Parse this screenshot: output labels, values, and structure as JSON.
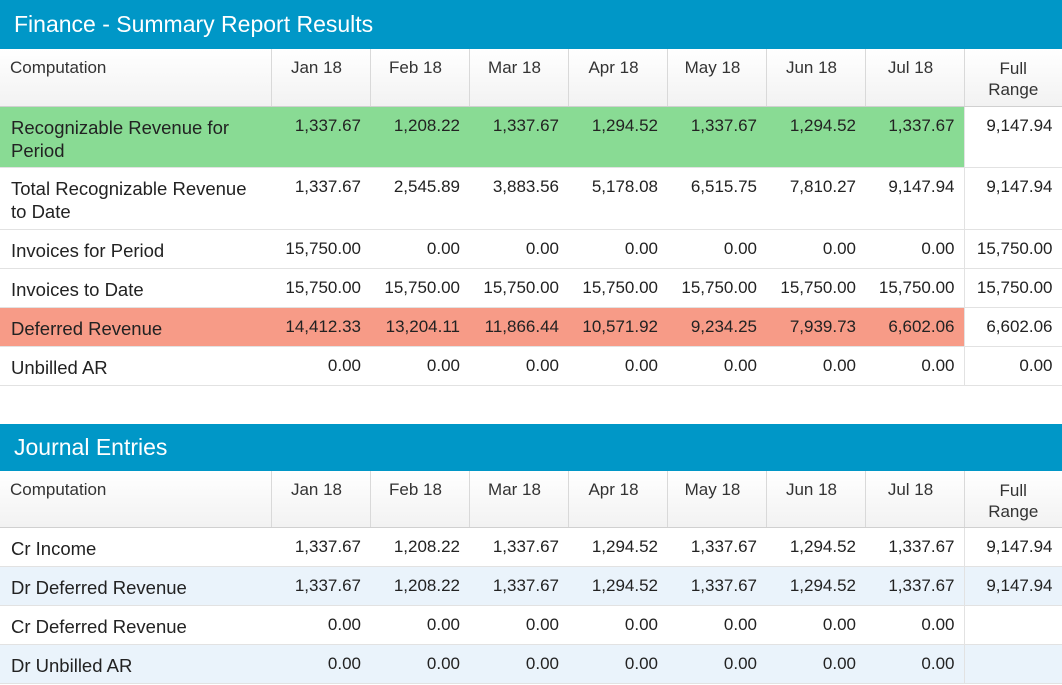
{
  "summary": {
    "title": "Finance - Summary Report Results",
    "columns": [
      "Computation",
      "Jan 18",
      "Feb 18",
      "Mar 18",
      "Apr 18",
      "May 18",
      "Jun 18",
      "Jul 18",
      "Full Range"
    ],
    "rows": [
      {
        "label": "Recognizable Revenue for Period",
        "highlight": "green",
        "values": [
          "1,337.67",
          "1,208.22",
          "1,337.67",
          "1,294.52",
          "1,337.67",
          "1,294.52",
          "1,337.67"
        ],
        "full": "9,147.94"
      },
      {
        "label": "Total Recognizable Revenue to Date",
        "values": [
          "1,337.67",
          "2,545.89",
          "3,883.56",
          "5,178.08",
          "6,515.75",
          "7,810.27",
          "9,147.94"
        ],
        "full": "9,147.94"
      },
      {
        "label": "Invoices for Period",
        "values": [
          "15,750.00",
          "0.00",
          "0.00",
          "0.00",
          "0.00",
          "0.00",
          "0.00"
        ],
        "full": "15,750.00"
      },
      {
        "label": "Invoices to Date",
        "values": [
          "15,750.00",
          "15,750.00",
          "15,750.00",
          "15,750.00",
          "15,750.00",
          "15,750.00",
          "15,750.00"
        ],
        "full": "15,750.00"
      },
      {
        "label": "Deferred Revenue",
        "highlight": "red",
        "values": [
          "14,412.33",
          "13,204.11",
          "11,866.44",
          "10,571.92",
          "9,234.25",
          "7,939.73",
          "6,602.06"
        ],
        "full": "6,602.06"
      },
      {
        "label": "Unbilled AR",
        "values": [
          "0.00",
          "0.00",
          "0.00",
          "0.00",
          "0.00",
          "0.00",
          "0.00"
        ],
        "full": "0.00"
      }
    ]
  },
  "journal": {
    "title": "Journal Entries",
    "columns": [
      "Computation",
      "Jan 18",
      "Feb 18",
      "Mar 18",
      "Apr 18",
      "May 18",
      "Jun 18",
      "Jul 18",
      "Full Range"
    ],
    "rows": [
      {
        "label": "Cr Income",
        "values": [
          "1,337.67",
          "1,208.22",
          "1,337.67",
          "1,294.52",
          "1,337.67",
          "1,294.52",
          "1,337.67"
        ],
        "full": "9,147.94"
      },
      {
        "label": "Dr Deferred Revenue",
        "values": [
          "1,337.67",
          "1,208.22",
          "1,337.67",
          "1,294.52",
          "1,337.67",
          "1,294.52",
          "1,337.67"
        ],
        "full": "9,147.94"
      },
      {
        "label": "Cr Deferred Revenue",
        "values": [
          "0.00",
          "0.00",
          "0.00",
          "0.00",
          "0.00",
          "0.00",
          "0.00"
        ],
        "full": ""
      },
      {
        "label": "Dr Unbilled AR",
        "values": [
          "0.00",
          "0.00",
          "0.00",
          "0.00",
          "0.00",
          "0.00",
          "0.00"
        ],
        "full": ""
      }
    ]
  },
  "colors": {
    "header": "#0097c7",
    "green": "#89db94",
    "red": "#f79b87",
    "alt_row": "#eaf3fb"
  }
}
